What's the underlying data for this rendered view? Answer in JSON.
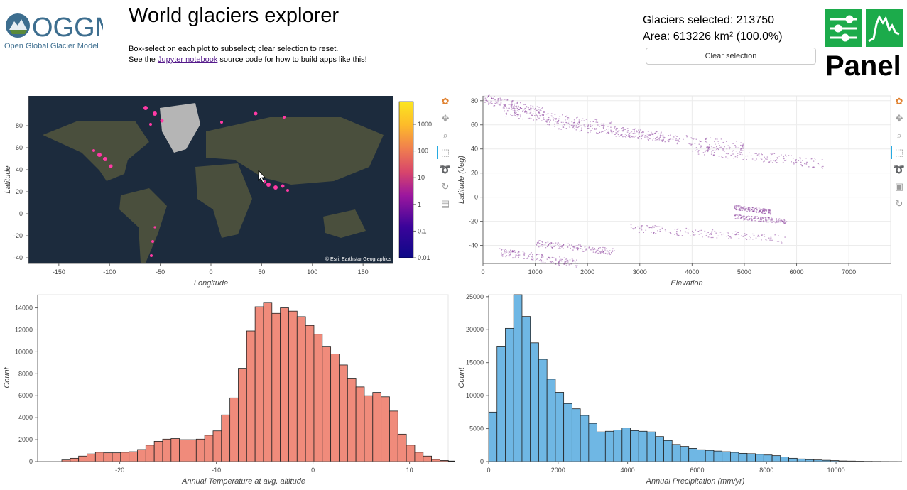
{
  "header": {
    "logo_text": "OGGM",
    "logo_subtext": "Open Global Glacier Model",
    "title": "World glaciers explorer",
    "subtitle_line1": "Box-select on each plot to subselect; clear selection to reset.",
    "subtitle_line2_before": "See the ",
    "subtitle_link": "Jupyter notebook",
    "subtitle_line2_after": " source code for how to build apps like this!",
    "selected_count": "Glaciers selected: 213750",
    "selected_area": "Area: 613226 km² (100.0%)",
    "clear_button_label": "Clear selection",
    "panel_logo_text": "Panel"
  },
  "colors": {
    "map_bg": "#1c2b3d",
    "land": "#4a4f3d",
    "glacier_pink": "#ff3aa5",
    "scatter_purple": "#8a3f9c",
    "temp_bar": "#f08b7b",
    "precip_bar": "#6fb7e4"
  },
  "toolbar_icons_map": [
    "bokeh-logo-icon",
    "pan-icon",
    "wheel-zoom-icon",
    "box-select-icon",
    "lasso-icon",
    "reset-icon",
    "hover-icon"
  ],
  "toolbar_icons_scatter": [
    "bokeh-logo-icon",
    "pan-icon",
    "wheel-zoom-icon",
    "box-select-icon",
    "lasso-icon",
    "save-icon",
    "reset-icon"
  ],
  "map": {
    "attribution": "© Esri, Earthstar Geographics",
    "xlabel": "Longitude",
    "ylabel": "Latitude",
    "xticks": [
      "-150",
      "-100",
      "-50",
      "0",
      "50",
      "100",
      "150"
    ],
    "yticks": [
      "80",
      "60",
      "40",
      "20",
      "0",
      "-20",
      "-40"
    ],
    "colorbar_ticks": [
      "1000",
      "100",
      "10",
      "1",
      "0.1",
      "0.01"
    ]
  },
  "chart_data": [
    {
      "type": "scatter",
      "xlabel": "Elevation",
      "ylabel": "Latitude (deg)",
      "xlim": [
        0,
        7800
      ],
      "ylim": [
        -55,
        84
      ],
      "xticks": [
        "0",
        "1000",
        "2000",
        "3000",
        "4000",
        "5000",
        "6000",
        "7000"
      ],
      "yticks": [
        "80",
        "60",
        "40",
        "20",
        "0",
        "-20",
        "-40"
      ],
      "bands": [
        {
          "x": [
            0,
            1200
          ],
          "y": [
            70,
            82
          ]
        },
        {
          "x": [
            400,
            2500
          ],
          "y": [
            58,
            72
          ]
        },
        {
          "x": [
            1200,
            3500
          ],
          "y": [
            50,
            62
          ]
        },
        {
          "x": [
            2500,
            5000
          ],
          "y": [
            42,
            55
          ]
        },
        {
          "x": [
            4000,
            6500
          ],
          "y": [
            28,
            40
          ]
        },
        {
          "x": [
            4800,
            5500
          ],
          "y": [
            -12,
            -8
          ]
        },
        {
          "x": [
            4800,
            5800
          ],
          "y": [
            -20,
            -16
          ]
        },
        {
          "x": [
            2800,
            5800
          ],
          "y": [
            -35,
            -25
          ]
        },
        {
          "x": [
            1000,
            2500
          ],
          "y": [
            -45,
            -38
          ]
        },
        {
          "x": [
            300,
            1800
          ],
          "y": [
            -55,
            -45
          ]
        }
      ]
    },
    {
      "type": "bar",
      "xlabel": "Annual Temperature at avg. altitude",
      "ylabel": "Count",
      "xlim": [
        -28.5,
        14
      ],
      "ylim": [
        0,
        15200
      ],
      "xticks": [
        -20,
        -10,
        0,
        10
      ],
      "yticks": [
        0,
        2000,
        4000,
        6000,
        8000,
        10000,
        12000,
        14000
      ],
      "bin_start": -26,
      "bin_width": 0.87,
      "values": [
        150,
        300,
        500,
        700,
        850,
        800,
        800,
        850,
        900,
        1100,
        1500,
        1850,
        2050,
        2100,
        2000,
        2000,
        2050,
        2400,
        2800,
        4250,
        5800,
        8500,
        11900,
        14100,
        14500,
        13500,
        14000,
        13700,
        13200,
        12400,
        11600,
        10500,
        9800,
        8800,
        7600,
        6800,
        6000,
        6300,
        5900,
        4600,
        2500,
        1500,
        850,
        500,
        200,
        100,
        50,
        30,
        20,
        10
      ]
    },
    {
      "type": "bar",
      "xlabel": "Annual Precipitation (mm/yr)",
      "ylabel": "Count",
      "xlim": [
        0,
        11900
      ],
      "ylim": [
        0,
        25300
      ],
      "xticks": [
        0,
        2000,
        4000,
        6000,
        8000,
        10000
      ],
      "yticks": [
        0,
        5000,
        10000,
        15000,
        20000,
        25000
      ],
      "bin_start": 0,
      "bin_width": 240,
      "values": [
        7500,
        17500,
        20200,
        25300,
        22000,
        18000,
        15500,
        12500,
        10500,
        8800,
        8000,
        7000,
        5800,
        4500,
        4600,
        4800,
        5100,
        4700,
        4600,
        4500,
        3800,
        3200,
        2600,
        2300,
        2000,
        1800,
        1700,
        1600,
        1500,
        1400,
        1250,
        1200,
        1100,
        1000,
        900,
        700,
        500,
        400,
        300,
        250,
        200,
        150,
        100,
        80,
        60,
        40,
        30,
        20,
        15,
        10
      ]
    }
  ]
}
